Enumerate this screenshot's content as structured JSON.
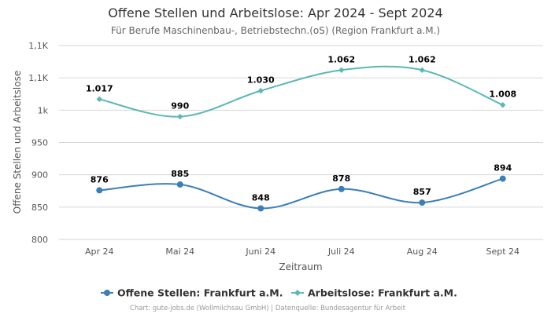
{
  "chart_data": {
    "type": "line",
    "title": "Offene Stellen und Arbeitslose: Apr 2024 - Sept 2024",
    "subtitle": "Für Berufe Maschinenbau-, Betriebstechn.(oS) (Region Frankfurt a.M.)",
    "xlabel": "Zeitraum",
    "ylabel": "Offene Stellen und Arbeitslose",
    "categories": [
      "Apr 24",
      "Mai 24",
      "Juni 24",
      "Juli 24",
      "Aug 24",
      "Sept 24"
    ],
    "ylim": [
      800,
      1100
    ],
    "yticks": [
      800,
      850,
      900,
      950,
      1000,
      1050,
      1100
    ],
    "ytick_labels": [
      "800",
      "850",
      "900",
      "950",
      "1k",
      "1,1K",
      "1,1K"
    ],
    "grid": true,
    "legend_position": "bottom",
    "series": [
      {
        "name": "Offene Stellen: Frankfurt a.M.",
        "values": [
          876,
          885,
          848,
          878,
          857,
          894
        ],
        "labels": [
          "876",
          "885",
          "848",
          "878",
          "857",
          "894"
        ],
        "color": "#3a7fb8",
        "marker": "circle"
      },
      {
        "name": "Arbeitslose: Frankfurt a.M.",
        "values": [
          1017,
          990,
          1030,
          1062,
          1062,
          1008
        ],
        "labels": [
          "1.017",
          "990",
          "1.030",
          "1.062",
          "1.062",
          "1.008"
        ],
        "color": "#5bb8b5",
        "marker": "diamond"
      }
    ]
  },
  "footer": {
    "credit": "Chart: gute-jobs.de (Wollmilchsau GmbH) | Datenquelle: Bundesagentur für Arbeit"
  }
}
